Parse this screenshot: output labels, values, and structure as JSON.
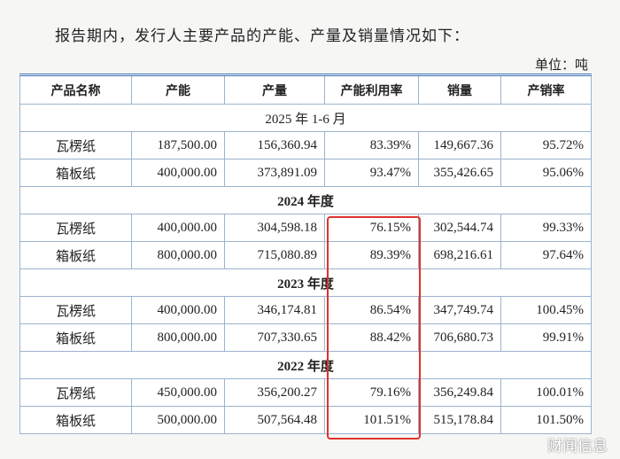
{
  "intro": "报告期内，发行人主要产品的产能、产量及销量情况如下：",
  "unit": "单位：吨",
  "table": {
    "headers": [
      "产品名称",
      "产能",
      "产量",
      "产能利用率",
      "销量",
      "产销率"
    ],
    "sections": [
      {
        "period": "2025 年 1-6 月",
        "rows": [
          [
            "瓦楞纸",
            "187,500.00",
            "156,360.94",
            "83.39%",
            "149,667.36",
            "95.72%"
          ],
          [
            "箱板纸",
            "400,000.00",
            "373,891.09",
            "93.47%",
            "355,426.65",
            "95.06%"
          ]
        ]
      },
      {
        "period": "2024 年度",
        "rows": [
          [
            "瓦楞纸",
            "400,000.00",
            "304,598.18",
            "76.15%",
            "302,544.74",
            "99.33%"
          ],
          [
            "箱板纸",
            "800,000.00",
            "715,080.89",
            "89.39%",
            "698,216.61",
            "97.64%"
          ]
        ]
      },
      {
        "period": "2023 年度",
        "rows": [
          [
            "瓦楞纸",
            "400,000.00",
            "346,174.81",
            "86.54%",
            "347,749.74",
            "100.45%"
          ],
          [
            "箱板纸",
            "800,000.00",
            "707,330.65",
            "88.42%",
            "706,680.73",
            "99.91%"
          ]
        ]
      },
      {
        "period": "2022 年度",
        "rows": [
          [
            "瓦楞纸",
            "450,000.00",
            "356,200.27",
            "79.16%",
            "356,249.84",
            "100.01%"
          ],
          [
            "箱板纸",
            "500,000.00",
            "507,564.48",
            "101.51%",
            "515,178.84",
            "101.50%"
          ]
        ]
      }
    ]
  },
  "watermark": "财闻信息"
}
